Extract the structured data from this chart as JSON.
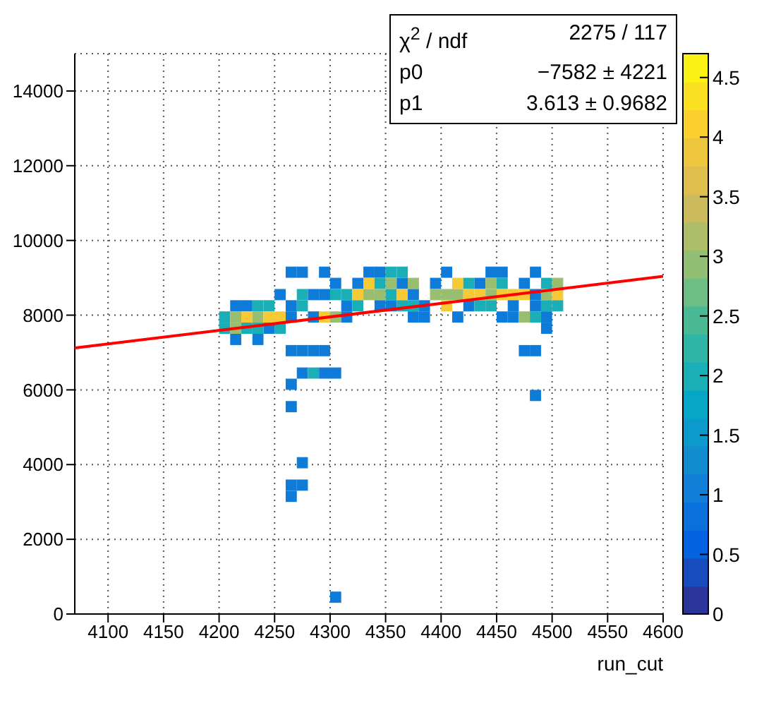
{
  "chart_data": {
    "type": "scatter",
    "xlabel": "run_cut",
    "xlim": [
      4070,
      4600
    ],
    "xticks": [
      4100,
      4150,
      4200,
      4250,
      4300,
      4350,
      4400,
      4450,
      4500,
      4550,
      4600
    ],
    "ylim": [
      0,
      15000
    ],
    "yticks": [
      0,
      2000,
      4000,
      6000,
      8000,
      10000,
      12000,
      14000
    ],
    "grid": true,
    "clim": [
      0,
      4.7
    ],
    "cticks": [
      0,
      0.5,
      1,
      1.5,
      2,
      2.5,
      3,
      3.5,
      4,
      4.5
    ],
    "annotations": [
      "χ$^{2}$ / ndf",
      "2275 / 117",
      "p0",
      "−7582 ±  4221",
      "p1",
      "3.613 ± 0.9682"
    ],
    "series": [
      {
        "type": "scatter",
        "marker": "square",
        "x": [
          4265,
          4275,
          4295,
          4335,
          4345,
          4355,
          4365,
          4405,
          4445,
          4455,
          4485,
          4305,
          4325,
          4335,
          4345,
          4355,
          4365,
          4375,
          4395,
          4415,
          4425,
          4435,
          4445,
          4455,
          4475,
          4495,
          4505,
          4255,
          4275,
          4285,
          4295,
          4305,
          4315,
          4325,
          4335,
          4345,
          4355,
          4365,
          4375,
          4395,
          4405,
          4415,
          4425,
          4435,
          4445,
          4455,
          4465,
          4475,
          4485,
          4495,
          4505,
          4215,
          4225,
          4235,
          4245,
          4265,
          4275,
          4315,
          4325,
          4345,
          4355,
          4365,
          4375,
          4385,
          4405,
          4425,
          4435,
          4445,
          4465,
          4485,
          4495,
          4505,
          4205,
          4215,
          4225,
          4235,
          4245,
          4255,
          4265,
          4285,
          4295,
          4305,
          4315,
          4375,
          4385,
          4415,
          4455,
          4465,
          4475,
          4485,
          4495,
          4205,
          4215,
          4225,
          4235,
          4245,
          4255,
          4495,
          4215,
          4235,
          4265,
          4275,
          4285,
          4295,
          4475,
          4485,
          4275,
          4285,
          4295,
          4305,
          4265,
          4485,
          4265,
          4275,
          4265,
          4275,
          4265,
          4305
        ],
        "values": [
          9150,
          9150,
          9150,
          9150,
          9150,
          9150,
          9150,
          9150,
          9150,
          9150,
          9150,
          8850,
          8850,
          8850,
          8850,
          8850,
          8850,
          8850,
          8850,
          8850,
          8850,
          8850,
          8850,
          8850,
          8850,
          8850,
          8850,
          8550,
          8550,
          8550,
          8550,
          8550,
          8550,
          8550,
          8550,
          8550,
          8550,
          8550,
          8550,
          8550,
          8550,
          8550,
          8550,
          8550,
          8550,
          8550,
          8550,
          8550,
          8550,
          8550,
          8550,
          8250,
          8250,
          8250,
          8250,
          8250,
          8250,
          8250,
          8250,
          8250,
          8250,
          8250,
          8250,
          8250,
          8250,
          8250,
          8250,
          8250,
          8250,
          8250,
          8250,
          8250,
          7950,
          7950,
          7950,
          7950,
          7950,
          7950,
          7950,
          7950,
          7950,
          7950,
          7950,
          7950,
          7950,
          7950,
          7950,
          7950,
          7950,
          7950,
          7950,
          7650,
          7650,
          7650,
          7650,
          7650,
          7650,
          7650,
          7350,
          7350,
          7050,
          7050,
          7050,
          7050,
          7050,
          7050,
          6450,
          6450,
          6450,
          6450,
          6150,
          5850,
          5550,
          4050,
          3450,
          3450,
          3150,
          450
        ],
        "cvalues": [
          1,
          1,
          1,
          1,
          1,
          2,
          2,
          1,
          1,
          1,
          1,
          1,
          1,
          4,
          2,
          3,
          1,
          3,
          1,
          4,
          2,
          1,
          3,
          2,
          1,
          2,
          3,
          1,
          2,
          1,
          1,
          2,
          2,
          4,
          3,
          3,
          2,
          4,
          1,
          3,
          3,
          3,
          4,
          4,
          3,
          4,
          4,
          4,
          1,
          3,
          4,
          1,
          1,
          2,
          2,
          1,
          2,
          1,
          2,
          1,
          1,
          2,
          2,
          1,
          4,
          1,
          2,
          2,
          1,
          1,
          2,
          2,
          2,
          3,
          4,
          3,
          4,
          4,
          1,
          1,
          4,
          3,
          1,
          1,
          1,
          1,
          1,
          1,
          3,
          2,
          1,
          2,
          3,
          2,
          2,
          1,
          2,
          1,
          1,
          1,
          1,
          1,
          1,
          1,
          1,
          1,
          1,
          2,
          1,
          1,
          1,
          1,
          1,
          1,
          1,
          1,
          1,
          1
        ],
        "colors": [
          "#0f7bd8",
          "#0f7bd8",
          "#0f7bd8",
          "#0f7bd8",
          "#0f7bd8",
          "#1aaeb6",
          "#1aaeb6",
          "#0f7bd8",
          "#0f7bd8",
          "#0f7bd8",
          "#0f7bd8",
          "#0f7bd8",
          "#0f7bd8",
          "#f5ca36",
          "#1aaeb6",
          "#9abe70",
          "#0f7bd8",
          "#9abe70",
          "#0f7bd8",
          "#f5ca36",
          "#1aaeb6",
          "#0f7bd8",
          "#9abe70",
          "#1aaeb6",
          "#0f7bd8",
          "#1aaeb6",
          "#9abe70",
          "#0f7bd8",
          "#1aaeb6",
          "#0f7bd8",
          "#0f7bd8",
          "#1aaeb6",
          "#1aaeb6",
          "#f5ca36",
          "#9abe70",
          "#9abe70",
          "#1aaeb6",
          "#f5ca36",
          "#0f7bd8",
          "#9abe70",
          "#9abe70",
          "#9abe70",
          "#f5ca36",
          "#f5ca36",
          "#9abe70",
          "#f5ca36",
          "#f5ca36",
          "#f5ca36",
          "#0f7bd8",
          "#9abe70",
          "#f5ca36",
          "#0f7bd8",
          "#0f7bd8",
          "#1aaeb6",
          "#1aaeb6",
          "#0f7bd8",
          "#1aaeb6",
          "#0f7bd8",
          "#1aaeb6",
          "#0f7bd8",
          "#0f7bd8",
          "#1aaeb6",
          "#1aaeb6",
          "#0f7bd8",
          "#f5ca36",
          "#0f7bd8",
          "#1aaeb6",
          "#1aaeb6",
          "#0f7bd8",
          "#0f7bd8",
          "#1aaeb6",
          "#1aaeb6",
          "#1aaeb6",
          "#9abe70",
          "#f5ca36",
          "#9abe70",
          "#f5ca36",
          "#f5ca36",
          "#0f7bd8",
          "#0f7bd8",
          "#f5ca36",
          "#9abe70",
          "#0f7bd8",
          "#0f7bd8",
          "#0f7bd8",
          "#0f7bd8",
          "#0f7bd8",
          "#0f7bd8",
          "#9abe70",
          "#1aaeb6",
          "#0f7bd8",
          "#1aaeb6",
          "#9abe70",
          "#1aaeb6",
          "#1aaeb6",
          "#0f7bd8",
          "#1aaeb6",
          "#0f7bd8",
          "#0f7bd8",
          "#0f7bd8",
          "#0f7bd8",
          "#0f7bd8",
          "#0f7bd8",
          "#0f7bd8",
          "#0f7bd8",
          "#0f7bd8",
          "#0f7bd8",
          "#1aaeb6",
          "#0f7bd8",
          "#0f7bd8",
          "#0f7bd8",
          "#0f7bd8",
          "#0f7bd8",
          "#0f7bd8",
          "#0f7bd8",
          "#0f7bd8",
          "#0f7bd8",
          "#0f7bd8"
        ]
      },
      {
        "type": "line",
        "marker": "none",
        "color": "#ff0000",
        "x": [
          4070,
          4600
        ],
        "values": [
          7120,
          9040
        ]
      }
    ]
  }
}
